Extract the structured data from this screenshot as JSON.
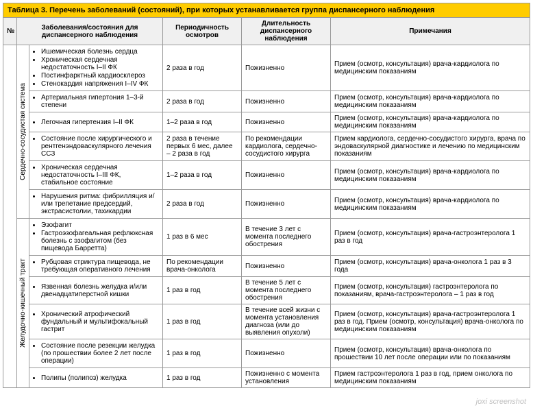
{
  "title": "Таблица 3. Перечень заболеваний (состояний), при которых устанавливается группа диспансерного наблюдения",
  "columns": {
    "num": "№",
    "diseases": "Заболевания/состояния для диспансерного наблюдения",
    "frequency": "Периодичность осмотров",
    "duration": "Длительность диспансерного наблюдения",
    "notes": "Примечания"
  },
  "sections": [
    {
      "name": "Сердечно-сосудистая система",
      "rows": [
        {
          "items": [
            "Ишемическая болезнь сердца",
            "Хроническая сердечная недостаточность I–II ФК",
            "Постинфарктный кардиосклероз",
            "Стенокардия напряжения I–IV ФК"
          ],
          "freq": "2 раза в год",
          "dur": "Пожизненно",
          "note": "Прием (осмотр, консультация) врача-кардиолога по медицинским показаниям"
        },
        {
          "items": [
            "Артериальная гипертония 1–3-й степени"
          ],
          "freq": "2 раза в год",
          "dur": "Пожизненно",
          "note": "Прием (осмотр, консультация) врача-кардиолога по медицинским показаниям"
        },
        {
          "items": [
            "Легочная гипертензия I–II ФК"
          ],
          "freq": "1–2 раза в год",
          "dur": "Пожизненно",
          "note": "Прием (осмотр, консультация) врача-кардиолога по медицинским показаниям"
        },
        {
          "items": [
            "Состояние после хирургического и рентгенэндоваскулярного лечения ССЗ"
          ],
          "freq": "2 раза в течение первых 6 мес, далее – 2 раза в год",
          "dur": "По рекомендации кардиолога, сердечно-сосудистого хирурга",
          "note": "Прием кардиолога, сердечно-сосудистого хирурга, врача по эндоваскулярной диагностике и лечению по медицинским показаниям"
        },
        {
          "items": [
            "Хроническая сердечная недостаточность I–III ФК, стабильное состояние"
          ],
          "freq": "1–2 раза в год",
          "dur": "Пожизненно",
          "note": "Прием (осмотр, консультация) врача-кардиолога по медицинским показаниям"
        },
        {
          "items": [
            "Нарушения ритма: фибрилляция и/или трепетание предсердий, экстрасистолии, тахикардии"
          ],
          "freq": "2 раза в год",
          "dur": "Пожизненно",
          "note": "Прием (осмотр, консультация) врача-кардиолога по медицинским показаниям"
        }
      ]
    },
    {
      "name": "Желудочно-кишечный тракт",
      "rows": [
        {
          "items": [
            "Эзофагит",
            "Гастроэзофагеальная рефлюксная болезнь с эзофагитом (без пищевода Барретта)"
          ],
          "freq": "1 раз в 6 мес",
          "dur": "В течение 3 лет с момента последнего обострения",
          "note": "Прием (осмотр, консультация) врача-гастроэнтеролога 1 раз в год"
        },
        {
          "items": [
            "Рубцовая стриктура пищевода, не требующая оперативного лечения"
          ],
          "freq": "По рекомендации врача-онколога",
          "dur": "Пожизненно",
          "note": "Прием (осмотр, консультация) врача-онколога 1 раз в 3 года"
        },
        {
          "items": [
            "Язвенная болезнь желудка и/или двенадцатиперстной кишки"
          ],
          "freq": "1 раз в год",
          "dur": "В течение 5 лет с момента последнего обострения",
          "note": "Прием (осмотр, консультация) гастроэнтеролога по показаниям, врача-гастроэнтеролога – 1 раз в год"
        },
        {
          "items": [
            "Хронический атрофический фундальный и мультифокальный гастрит"
          ],
          "freq": "1 раз в год",
          "dur": "В течение всей жизни с момента установления диагноза (или до выявления опухоли)",
          "note": "Прием (осмотр, консультация) врача-гастроэнтеролога 1 раз в год. Прием (осмотр, консультация) врача-онколога по медицинским показаниям"
        },
        {
          "items": [
            "Состояние после резекции желудка (по прошествии более 2 лет после операции)"
          ],
          "freq": "1 раз в год",
          "dur": "Пожизненно",
          "note": "Прием (осмотр, консультация) врача-онколога по прошествии 10 лет после операции или по показаниям"
        },
        {
          "items": [
            "Полипы (полипоз) желудка"
          ],
          "freq": "1 раз в год",
          "dur": "Пожизненно с момента установления",
          "note": "Прием гастроэнтеролога 1 раз в год, прием онколога по медицинским показаниям"
        }
      ]
    }
  ],
  "watermark": "joxi screenshot"
}
